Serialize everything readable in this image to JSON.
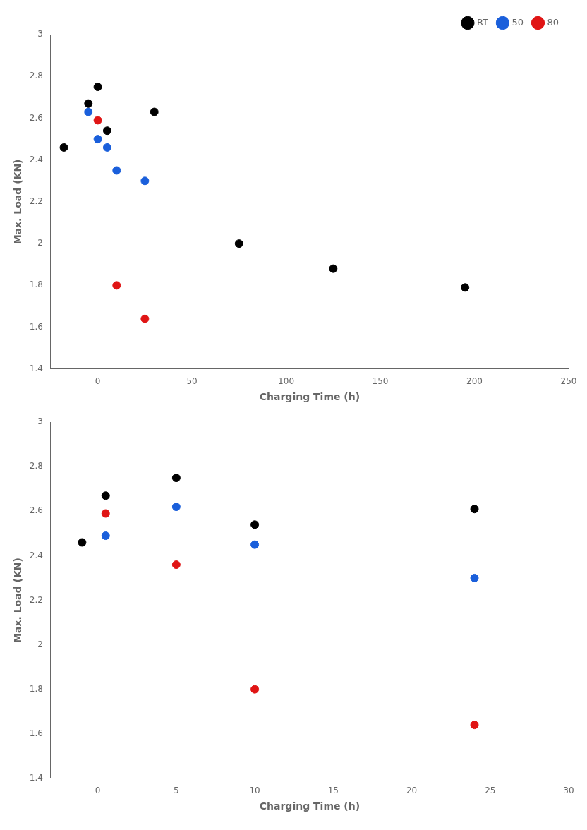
{
  "chart_data": [
    {
      "type": "scatter",
      "xlabel": "Charging Time (h)",
      "ylabel": "Max. Load (KN)",
      "xlim": [
        -25,
        250
      ],
      "ylim": [
        1.4,
        3.0
      ],
      "xticks": [
        0,
        50,
        100,
        150,
        200,
        250
      ],
      "yticks": [
        1.4,
        1.6,
        1.8,
        2,
        2.2,
        2.4,
        2.6,
        2.8,
        3
      ],
      "grid": false,
      "legend": "upper right",
      "series": [
        {
          "name": "RT",
          "color": "black",
          "x": [
            -18,
            -5,
            0,
            5,
            30,
            75,
            125,
            195
          ],
          "values": [
            2.46,
            2.67,
            2.75,
            2.54,
            2.63,
            2.0,
            1.88,
            1.79
          ]
        },
        {
          "name": "50",
          "color": "#1a5fdb",
          "x": [
            -5,
            0,
            5,
            10,
            25
          ],
          "values": [
            2.63,
            2.5,
            2.46,
            2.35,
            2.3
          ]
        },
        {
          "name": "80",
          "color": "#e01515",
          "x": [
            0,
            10,
            25
          ],
          "values": [
            2.59,
            1.8,
            1.64
          ]
        }
      ]
    },
    {
      "type": "scatter",
      "xlabel": "Charging Time (h)",
      "ylabel": "Max. Load (KN)",
      "xlim": [
        -3,
        30
      ],
      "ylim": [
        1.4,
        3.0
      ],
      "xticks": [
        0,
        5,
        10,
        15,
        20,
        25,
        30
      ],
      "yticks": [
        1.4,
        1.6,
        1.8,
        2,
        2.2,
        2.4,
        2.6,
        2.8,
        3
      ],
      "grid": false,
      "series": [
        {
          "color": "black",
          "x": [
            -1,
            0.5,
            5,
            10,
            24
          ],
          "values": [
            2.46,
            2.67,
            2.75,
            2.54,
            2.61
          ]
        },
        {
          "color": "#1a5fdb",
          "x": [
            0.5,
            5,
            10,
            24
          ],
          "values": [
            2.49,
            2.62,
            2.45,
            2.3
          ]
        },
        {
          "color": "#e01515",
          "x": [
            0.5,
            5,
            10,
            24
          ],
          "values": [
            2.59,
            2.36,
            1.8,
            1.64
          ]
        }
      ]
    }
  ]
}
